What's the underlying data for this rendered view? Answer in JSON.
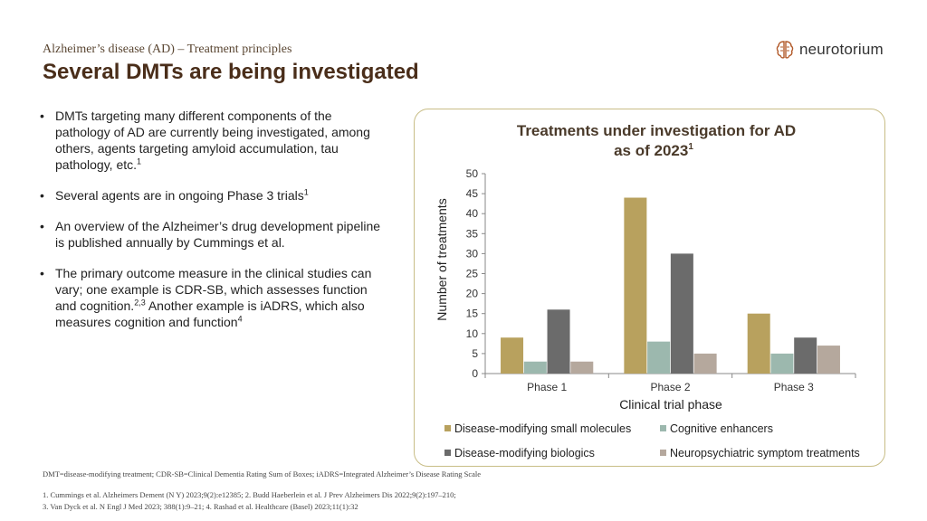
{
  "header": {
    "subtitle": "Alzheimer’s disease (AD) – Treatment principles",
    "title": "Several DMTs are being investigated"
  },
  "logo": {
    "text": "neurotorium",
    "icon": "brain-icon"
  },
  "bullets": [
    {
      "text": "DMTs targeting many different components of the pathology of AD are currently being investigated, among others, agents targeting amyloid accumulation, tau pathology, etc.",
      "sup": "1"
    },
    {
      "text": "Several agents are in ongoing Phase 3 trials",
      "sup": "1"
    },
    {
      "text": "An overview of the Alzheimer’s drug development pipeline is published annually by Cummings et al.",
      "sup": ""
    },
    {
      "text": "The primary outcome measure in the clinical studies can vary; one example is CDR-SB, which assesses function and cognition.",
      "sup": "2,3",
      "text2": "Another example is iADRS, which also measures cognition and function",
      "sup2": "4"
    }
  ],
  "chart_data": {
    "type": "bar",
    "title_line1": "Treatments under investigation for AD",
    "title_line2": "as of 2023",
    "title_sup": "1",
    "xlabel": "Clinical trial phase",
    "ylabel": "Number of treatments",
    "ylim": [
      0,
      50
    ],
    "yticks": [
      0,
      5,
      10,
      15,
      20,
      25,
      30,
      35,
      40,
      45,
      50
    ],
    "categories": [
      "Phase 1",
      "Phase 2",
      "Phase 3"
    ],
    "series": [
      {
        "name": "Disease-modifying small molecules",
        "values": [
          9,
          44,
          15
        ],
        "color": "#b8a15e"
      },
      {
        "name": "Cognitive enhancers",
        "values": [
          3,
          8,
          5
        ],
        "color": "#9cb8ae"
      },
      {
        "name": "Disease-modifying biologics",
        "values": [
          16,
          30,
          9
        ],
        "color": "#6b6b6b"
      },
      {
        "name": "Neuropsychiatric symptom treatments",
        "values": [
          3,
          5,
          7
        ],
        "color": "#b5a89d"
      }
    ],
    "legend_position": "bottom",
    "grid": false
  },
  "footnotes": {
    "abbrev": "DMT=disease-modifying treatment; CDR-SB=Clinical Dementia Rating Sum of Boxes; iADRS=Integrated Alzheimer’s Disease Rating Scale",
    "ref1": "1. Cummings et al. Alzheimers Dement (N Y) 2023;9(2):e12385; 2. Budd Haeberlein et al. J Prev Alzheimers Dis 2022;9(2):197–210;",
    "ref2": "3. Van Dyck et al. N Engl J Med 2023; 388(1):9–21; 4. Rashad et al. Healthcare (Basel) 2023;11(1):32"
  }
}
